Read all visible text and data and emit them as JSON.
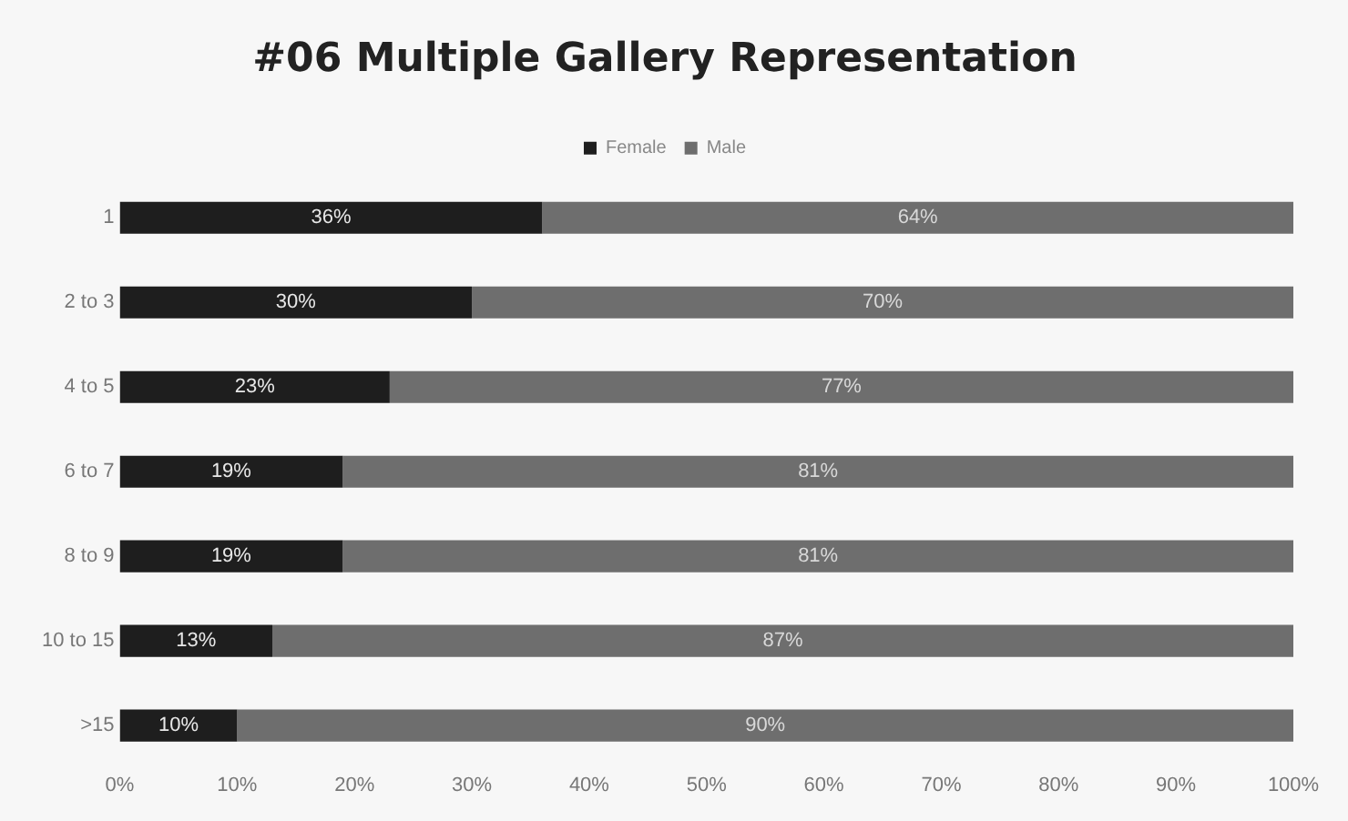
{
  "chart_data": {
    "type": "bar",
    "orientation": "horizontal",
    "stacked": true,
    "title": "#06 Multiple Gallery Representation",
    "categories": [
      "1",
      "2 to 3",
      "4 to 5",
      "6 to 7",
      "8 to 9",
      "10 to 15",
      ">15"
    ],
    "series": [
      {
        "name": "Female",
        "color": "#1e1e1e",
        "values": [
          36,
          30,
          23,
          19,
          19,
          13,
          10
        ],
        "value_labels": [
          "36%",
          "30%",
          "23%",
          "19%",
          "19%",
          "13%",
          "10%"
        ]
      },
      {
        "name": "Male",
        "color": "#6e6e6e",
        "values": [
          64,
          70,
          77,
          81,
          81,
          87,
          90
        ],
        "value_labels": [
          "64%",
          "70%",
          "77%",
          "81%",
          "81%",
          "87%",
          "90%"
        ]
      }
    ],
    "xlim": [
      0,
      100
    ],
    "xticks": [
      {
        "value": 0,
        "label": "0%"
      },
      {
        "value": 10,
        "label": "10%"
      },
      {
        "value": 20,
        "label": "20%"
      },
      {
        "value": 30,
        "label": "30%"
      },
      {
        "value": 40,
        "label": "40%"
      },
      {
        "value": 50,
        "label": "50%"
      },
      {
        "value": 60,
        "label": "60%"
      },
      {
        "value": 70,
        "label": "70%"
      },
      {
        "value": 80,
        "label": "80%"
      },
      {
        "value": 90,
        "label": "90%"
      },
      {
        "value": 100,
        "label": "100%"
      }
    ],
    "grid": false,
    "legend": "top"
  }
}
